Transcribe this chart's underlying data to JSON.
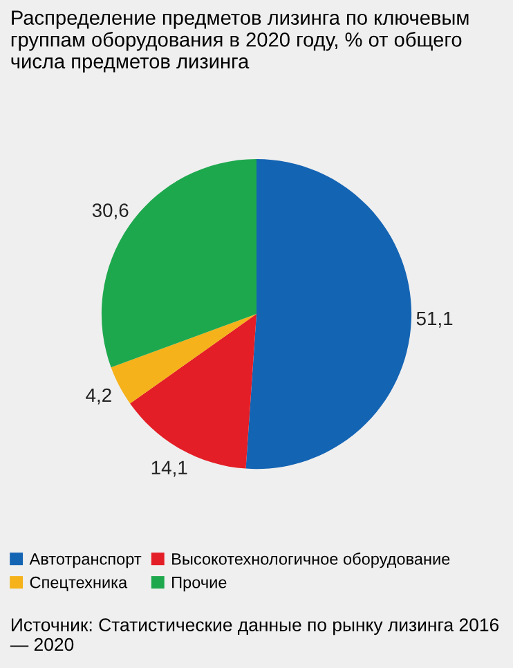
{
  "chart_data": {
    "type": "pie",
    "title": "Распределение предметов лизинга по ключевым группам оборудования в 2020 году, % от общего числа предметов лизинга",
    "categories": [
      "Автотранспорт",
      "Высокотехнологичное оборудование",
      "Спецтехника",
      "Прочие"
    ],
    "values": [
      51.1,
      14.1,
      4.2,
      30.6
    ],
    "value_labels": [
      "51,1",
      "14,1",
      "4,2",
      "30,6"
    ],
    "colors": [
      "#1464b4",
      "#e41e26",
      "#f5b21a",
      "#1ea84e"
    ],
    "legend": "bottom",
    "annotations": [
      "Источник: Статистические данные по рынку лизинга 2016 — 2020"
    ]
  }
}
